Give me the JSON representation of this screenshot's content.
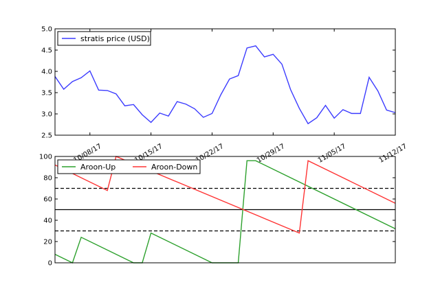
{
  "chart_data": [
    {
      "type": "line",
      "title": "",
      "xlabel": "",
      "ylabel": "",
      "x_tick_labels": [
        "10/08/17",
        "10/15/17",
        "10/22/17",
        "10/29/17",
        "11/05/17",
        "11/12/17"
      ],
      "x_tick_dates": [
        "2017-10-08",
        "2017-10-15",
        "2017-10-22",
        "2017-10-29",
        "2017-11-05",
        "2017-11-12"
      ],
      "xlim": [
        "2017-10-04",
        "2017-11-12"
      ],
      "ylim": [
        2.5,
        5.0
      ],
      "y_ticks": [
        "2.5",
        "3.0",
        "3.5",
        "4.0",
        "4.5",
        "5.0"
      ],
      "legend": {
        "location": "top-left"
      },
      "series": [
        {
          "name": "stratis price (USD)",
          "color": "#3b3bff",
          "x": [
            "2017-10-04",
            "2017-10-05",
            "2017-10-06",
            "2017-10-07",
            "2017-10-08",
            "2017-10-09",
            "2017-10-10",
            "2017-10-11",
            "2017-10-12",
            "2017-10-13",
            "2017-10-14",
            "2017-10-15",
            "2017-10-16",
            "2017-10-17",
            "2017-10-18",
            "2017-10-19",
            "2017-10-20",
            "2017-10-21",
            "2017-10-22",
            "2017-10-23",
            "2017-10-24",
            "2017-10-25",
            "2017-10-26",
            "2017-10-27",
            "2017-10-28",
            "2017-10-29",
            "2017-10-30",
            "2017-10-31",
            "2017-11-01",
            "2017-11-02",
            "2017-11-03",
            "2017-11-04",
            "2017-11-05",
            "2017-11-06",
            "2017-11-07",
            "2017-11-08",
            "2017-11-09",
            "2017-11-10",
            "2017-11-11",
            "2017-11-12"
          ],
          "values": [
            3.88,
            3.58,
            3.76,
            3.85,
            4.01,
            3.56,
            3.55,
            3.47,
            3.19,
            3.22,
            2.98,
            2.8,
            3.02,
            2.95,
            3.29,
            3.23,
            3.12,
            2.92,
            3.01,
            3.45,
            3.82,
            3.9,
            4.55,
            4.6,
            4.34,
            4.4,
            4.17,
            3.57,
            3.13,
            2.77,
            2.91,
            3.2,
            2.9,
            3.1,
            3.01,
            3.01,
            3.86,
            3.54,
            3.09,
            3.03
          ]
        }
      ]
    },
    {
      "type": "line",
      "title": "",
      "xlabel": "",
      "ylabel": "",
      "ylim": [
        0,
        100
      ],
      "y_ticks": [
        "0",
        "20",
        "40",
        "60",
        "80",
        "100"
      ],
      "xlim": [
        "2017-10-04",
        "2017-11-12"
      ],
      "legend": {
        "location": "top-left",
        "columns": 2
      },
      "reference_lines": [
        {
          "y": 70,
          "style": "dashed",
          "color": "#000000"
        },
        {
          "y": 50,
          "style": "solid",
          "color": "#000000"
        },
        {
          "y": 30,
          "style": "dashed",
          "color": "#000000"
        }
      ],
      "series": [
        {
          "name": "Aroon-Up",
          "color": "#2ca02c",
          "x": [
            "2017-10-04",
            "2017-10-06",
            "2017-10-07",
            "2017-10-13",
            "2017-10-14",
            "2017-10-15",
            "2017-10-22",
            "2017-10-25",
            "2017-10-26",
            "2017-10-27",
            "2017-11-12"
          ],
          "values": [
            8,
            0,
            24,
            0,
            0,
            28,
            0,
            0,
            96,
            96,
            32
          ]
        },
        {
          "name": "Aroon-Down",
          "color": "#ff3333",
          "x": [
            "2017-10-04",
            "2017-10-10",
            "2017-10-11",
            "2017-11-01",
            "2017-11-02",
            "2017-11-12"
          ],
          "values": [
            92,
            68,
            100,
            28,
            96,
            56
          ]
        }
      ]
    }
  ]
}
